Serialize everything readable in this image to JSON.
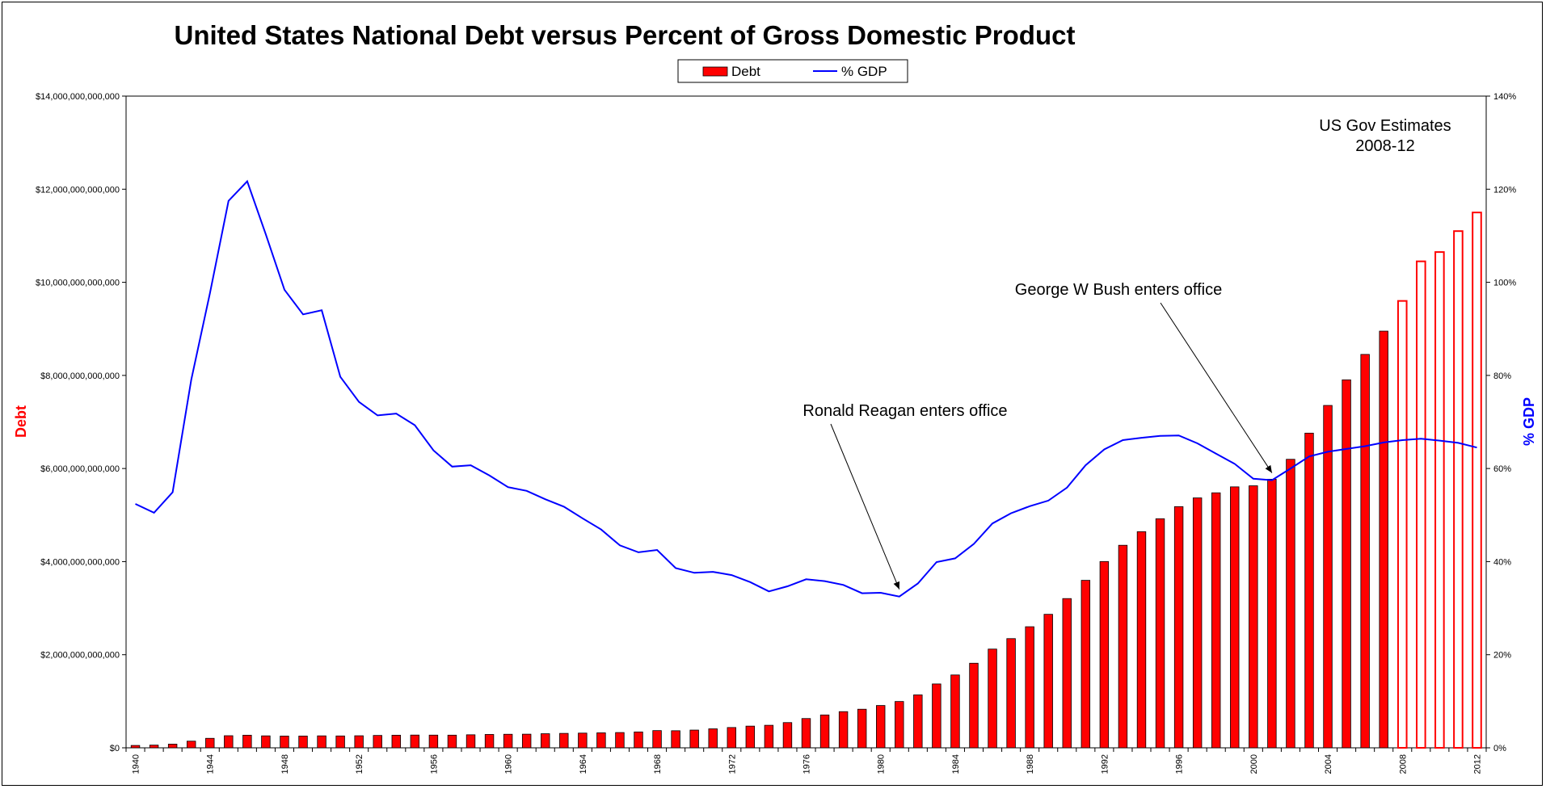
{
  "chart_data": {
    "type": "bar+line",
    "title": "United States National Debt versus Percent of Gross Domestic Product",
    "ylabel": "Debt",
    "y2label": "% GDP",
    "ylim": [
      0,
      14000000000000
    ],
    "y2lim": [
      0,
      140
    ],
    "legend": {
      "placement": "top-center",
      "entries": [
        {
          "name": "Debt",
          "style": "bar",
          "color": "#ff0000"
        },
        {
          "name": "% GDP",
          "style": "line",
          "color": "#0000ff"
        }
      ]
    },
    "y_ticks": [
      "$0",
      "$2,000,000,000,000",
      "$4,000,000,000,000",
      "$6,000,000,000,000",
      "$8,000,000,000,000",
      "$10,000,000,000,000",
      "$12,000,000,000,000",
      "$14,000,000,000,000"
    ],
    "y2_ticks": [
      "0%",
      "20%",
      "40%",
      "60%",
      "80%",
      "100%",
      "120%",
      "140%"
    ],
    "x_tick_labels": [
      "1940",
      "1944",
      "1948",
      "1952",
      "1956",
      "1960",
      "1964",
      "1968",
      "1972",
      "1976",
      "1980",
      "1984",
      "1988",
      "1992",
      "1996",
      "2000",
      "2004",
      "2008",
      "2012"
    ],
    "x": [
      1940,
      1941,
      1942,
      1943,
      1944,
      1945,
      1946,
      1947,
      1948,
      1949,
      1950,
      1951,
      1952,
      1953,
      1954,
      1955,
      1956,
      1957,
      1958,
      1959,
      1960,
      1961,
      1962,
      1963,
      1964,
      1965,
      1966,
      1967,
      1968,
      1969,
      1970,
      1971,
      1972,
      1973,
      1974,
      1975,
      1976,
      1977,
      1978,
      1979,
      1980,
      1981,
      1982,
      1983,
      1984,
      1985,
      1986,
      1987,
      1988,
      1989,
      1990,
      1991,
      1992,
      1993,
      1994,
      1995,
      1996,
      1997,
      1998,
      1999,
      2000,
      2001,
      2002,
      2003,
      2004,
      2005,
      2006,
      2007,
      2008,
      2009,
      2010,
      2011,
      2012
    ],
    "estimate_start_year": 2008,
    "series": [
      {
        "name": "Debt",
        "type": "bar",
        "color": "#ff0000",
        "values": [
          51000000000,
          58000000000,
          79000000000,
          143000000000,
          204000000000,
          260000000000,
          271000000000,
          257000000000,
          252000000000,
          253000000000,
          257000000000,
          255000000000,
          259000000000,
          266000000000,
          271000000000,
          274000000000,
          273000000000,
          272000000000,
          280000000000,
          287000000000,
          291000000000,
          293000000000,
          303000000000,
          310000000000,
          316000000000,
          322000000000,
          328000000000,
          341000000000,
          370000000000,
          367000000000,
          381000000000,
          408000000000,
          436000000000,
          466000000000,
          484000000000,
          542000000000,
          629000000000,
          706000000000,
          777000000000,
          829000000000,
          909000000000,
          995000000000,
          1137000000000,
          1372000000000,
          1565000000000,
          1817000000000,
          2121000000000,
          2346000000000,
          2601000000000,
          2868000000000,
          3206000000000,
          3598000000000,
          4002000000000,
          4351000000000,
          4643000000000,
          4921000000000,
          5181000000000,
          5369000000000,
          5478000000000,
          5606000000000,
          5629000000000,
          5770000000000,
          6198000000000,
          6760000000000,
          7355000000000,
          7905000000000,
          8451000000000,
          8951000000000,
          9600000000000,
          10450000000000,
          10650000000000,
          11100000000000,
          11500000000000
        ]
      },
      {
        "name": "% GDP",
        "type": "line",
        "color": "#0000ff",
        "values": [
          52.4,
          50.5,
          54.9,
          79.1,
          97.6,
          117.5,
          121.7,
          110.3,
          98.4,
          93.1,
          94.0,
          79.7,
          74.3,
          71.4,
          71.8,
          69.3,
          63.9,
          60.4,
          60.7,
          58.5,
          56.0,
          55.2,
          53.4,
          51.8,
          49.3,
          46.9,
          43.5,
          42.0,
          42.5,
          38.6,
          37.6,
          37.8,
          37.1,
          35.6,
          33.6,
          34.7,
          36.2,
          35.8,
          35.0,
          33.2,
          33.3,
          32.5,
          35.3,
          39.9,
          40.7,
          43.8,
          48.2,
          50.4,
          51.9,
          53.1,
          55.9,
          60.7,
          64.1,
          66.1,
          66.6,
          67.0,
          67.1,
          65.4,
          63.2,
          61.0,
          57.8,
          57.5,
          60.0,
          62.6,
          63.6,
          64.2,
          64.8,
          65.6,
          66.1,
          66.4,
          66.0,
          65.5,
          64.5
        ]
      }
    ],
    "annotations": [
      {
        "text": "US Gov Estimates",
        "text2": "2008-12"
      },
      {
        "text": "Ronald Reagan enters office",
        "points_to_year": 1981
      },
      {
        "text": "George W Bush enters office",
        "points_to_year": 2001
      }
    ]
  }
}
